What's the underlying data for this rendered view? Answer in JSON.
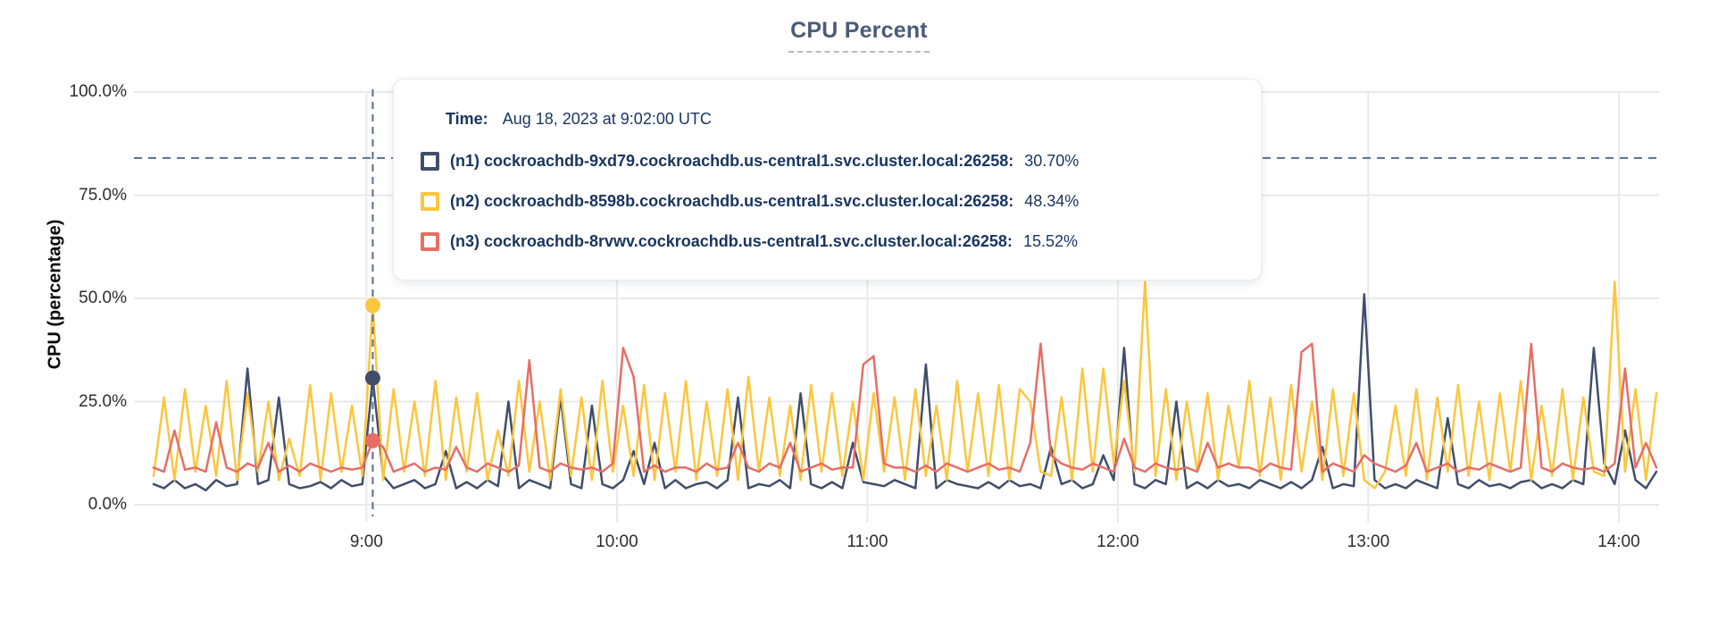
{
  "title": "CPU Percent",
  "y_axis_title": "CPU (percentage)",
  "tooltip": {
    "time_label": "Time:",
    "time_value": "Aug 18, 2023 at 9:02:00 UTC",
    "rows": [
      {
        "name": "(n1) cockroachdb-9xd79.cockroachdb.us-central1.svc.cluster.local:26258:",
        "value": "30.70%"
      },
      {
        "name": "(n2) cockroachdb-8598b.cockroachdb.us-central1.svc.cluster.local:26258:",
        "value": "48.34%"
      },
      {
        "name": "(n3) cockroachdb-8rvwv.cockroachdb.us-central1.svc.cluster.local:26258:",
        "value": "15.52%"
      }
    ]
  },
  "colors": {
    "grid": "#e9e9e9",
    "crosshair": "#54708e",
    "threshold_line": "#54708e",
    "title_text": "#4a5b78",
    "tooltip_text": "#17355f"
  },
  "chart_data": {
    "type": "line",
    "title": "CPU Percent",
    "xlabel": "",
    "ylabel": "CPU (percentage)",
    "ylim": [
      0,
      100
    ],
    "grid": true,
    "legend_position": "tooltip-overlay",
    "y_ticks": [
      {
        "label": "0.0%",
        "value": 0
      },
      {
        "label": "25.0%",
        "value": 25
      },
      {
        "label": "50.0%",
        "value": 50
      },
      {
        "label": "75.0%",
        "value": 75
      },
      {
        "label": "100.0%",
        "value": 100
      }
    ],
    "x_ticks": [
      {
        "label": "9:00",
        "minutes": 540
      },
      {
        "label": "10:00",
        "minutes": 600
      },
      {
        "label": "11:00",
        "minutes": 660
      },
      {
        "label": "12:00",
        "minutes": 720
      },
      {
        "label": "13:00",
        "minutes": 780
      },
      {
        "label": "14:00",
        "minutes": 840
      }
    ],
    "x_start_minutes": 489,
    "x_step_minutes": 2.5,
    "threshold": {
      "value": 84
    },
    "hover": {
      "index": 21,
      "time": "Aug 18, 2023 at 9:02:00 UTC"
    },
    "series": [
      {
        "name": "(n1) cockroachdb-9xd79.cockroachdb.us-central1.svc.cluster.local:26258",
        "color": "#404e6b",
        "hover_value": 30.7,
        "values": [
          5,
          4,
          6,
          4,
          5,
          3.5,
          6,
          4.5,
          5,
          33,
          5,
          6,
          26,
          5,
          4,
          4.5,
          5.5,
          4,
          6,
          4.5,
          5,
          30.7,
          7,
          4,
          5,
          6,
          4,
          5,
          13,
          4,
          5.5,
          4,
          6,
          4.5,
          25,
          4,
          6,
          5,
          4,
          26,
          5,
          4,
          24,
          5,
          4,
          6,
          13,
          5,
          15,
          4,
          6,
          4,
          5,
          5.5,
          4,
          6,
          26,
          4,
          5,
          4.5,
          6,
          4,
          27,
          5,
          4,
          5.5,
          4,
          15,
          5.5,
          5,
          4.5,
          6,
          5,
          4,
          34,
          4,
          6,
          5,
          4.5,
          4,
          5.5,
          4,
          6,
          4.5,
          5,
          4,
          14,
          5,
          6,
          4,
          5,
          12,
          6,
          38,
          5,
          4,
          6,
          5,
          25,
          4,
          5.5,
          4,
          6,
          4.5,
          5,
          4,
          6,
          5,
          4,
          5.5,
          4,
          6,
          14,
          4,
          5,
          4.5,
          51,
          6,
          4,
          5,
          4,
          6,
          5,
          4,
          21,
          5,
          4,
          6,
          4.5,
          5,
          4,
          5.5,
          6,
          4,
          5,
          4,
          6,
          5,
          38,
          10,
          5,
          18,
          6,
          4,
          8
        ]
      },
      {
        "name": "(n2) cockroachdb-8598b.cockroachdb.us-central1.svc.cluster.local:26258",
        "color": "#fcc63d",
        "hover_value": 48.34,
        "values": [
          7,
          26,
          6,
          28,
          8,
          24,
          7,
          30,
          6,
          27,
          8,
          25,
          6,
          16,
          7,
          29,
          6,
          27,
          8,
          24,
          7,
          48.3,
          6,
          28,
          8,
          25,
          7,
          30,
          6,
          26,
          8,
          27,
          6,
          18,
          7,
          30,
          8,
          25,
          6,
          28,
          7,
          26,
          6,
          30,
          8,
          24,
          7,
          29,
          6,
          27,
          8,
          30,
          6,
          25,
          7,
          28,
          6,
          31,
          8,
          26,
          7,
          24,
          6,
          29,
          8,
          27,
          7,
          25,
          6,
          27,
          8,
          26,
          6,
          28,
          7,
          24,
          6,
          30,
          8,
          27,
          7,
          29,
          6,
          28,
          25,
          8,
          7,
          26,
          6,
          33,
          8,
          33,
          10,
          30,
          8,
          54,
          7,
          28,
          6,
          25,
          8,
          27,
          6,
          24,
          9,
          30,
          7,
          26,
          6,
          29,
          8,
          25,
          6,
          28,
          7,
          27,
          6,
          4,
          8,
          24,
          7,
          28,
          6,
          26,
          8,
          29,
          7,
          25,
          6,
          27,
          8,
          30,
          6,
          24,
          7,
          28,
          6,
          26,
          8,
          7,
          54,
          8,
          28,
          6,
          27
        ]
      },
      {
        "name": "(n3) cockroachdb-8rvwv.cockroachdb.us-central1.svc.cluster.local:26258",
        "color": "#e56e68",
        "hover_value": 15.52,
        "values": [
          9,
          8,
          18,
          8.5,
          9,
          8,
          20,
          9,
          8,
          10,
          9,
          15,
          8,
          9.5,
          8,
          10,
          9,
          8,
          9,
          8.5,
          9,
          15.5,
          14,
          8,
          9,
          10,
          8,
          9,
          8.5,
          14,
          9,
          8,
          10,
          9,
          8,
          9.5,
          35,
          9,
          8,
          10,
          9,
          8.5,
          9,
          8,
          10,
          38,
          31,
          8,
          9.5,
          8,
          9,
          9,
          8,
          10,
          8.5,
          9,
          15,
          9,
          8,
          10,
          9,
          15,
          8,
          9,
          10,
          8.5,
          9,
          9,
          34,
          36,
          10,
          9,
          9,
          8,
          9.5,
          8,
          10,
          9,
          8,
          9,
          10,
          8.5,
          9,
          8,
          15,
          39,
          12,
          10,
          9,
          8.5,
          10,
          9,
          8,
          16,
          9,
          8,
          10,
          9,
          8.5,
          9,
          8,
          15,
          9,
          10,
          9,
          9,
          8,
          10,
          9,
          8.5,
          37,
          39,
          8,
          10,
          9,
          8,
          12,
          10,
          9,
          8,
          9.5,
          15,
          8,
          9,
          10,
          8,
          9,
          8.5,
          10,
          9,
          8,
          9,
          39,
          9,
          8,
          10,
          9,
          8.5,
          9,
          8,
          10,
          33,
          9,
          15,
          9
        ]
      }
    ]
  }
}
